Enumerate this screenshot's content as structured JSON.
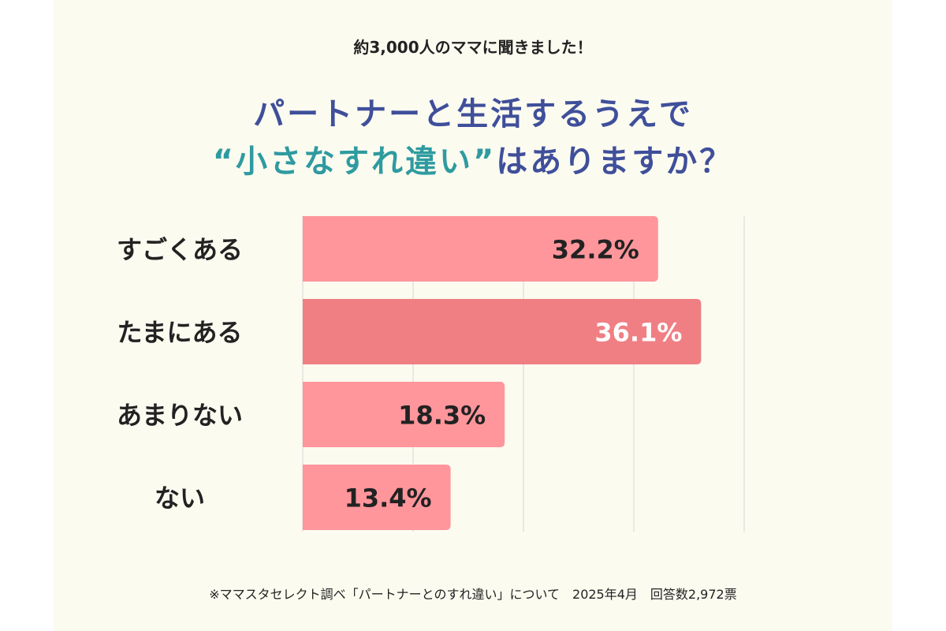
{
  "header": {
    "subtitle": "約3,000人のママに聞きました！",
    "title_line1": "パートナーと生活するうえで",
    "title_line2_highlight": "“小さなすれ違い”",
    "title_line2_rest": "はありますか？"
  },
  "chart_data": {
    "type": "bar",
    "orientation": "horizontal",
    "categories": [
      "すごくある",
      "たまにある",
      "あまりない",
      "ない"
    ],
    "values": [
      32.2,
      36.1,
      18.3,
      13.4
    ],
    "value_labels": [
      "32.2%",
      "36.1%",
      "18.3%",
      "13.4%"
    ],
    "highlight_index": 1,
    "xlim": [
      0,
      40
    ],
    "grid": true,
    "colors": {
      "bar": "#ff969c",
      "bar_highlight": "#f07f84",
      "label_on_bar": "#222222",
      "label_on_highlight": "#ffffff",
      "grid": "#d6d6d6"
    }
  },
  "footer": {
    "note": "※ママスタセレクト調べ「パートナーとのすれ違い」について　2025年4月　回答数2,972票"
  },
  "colors": {
    "background": "#fcfbf0",
    "title_blue": "#3f4f9a",
    "title_teal": "#2e9ba0"
  }
}
